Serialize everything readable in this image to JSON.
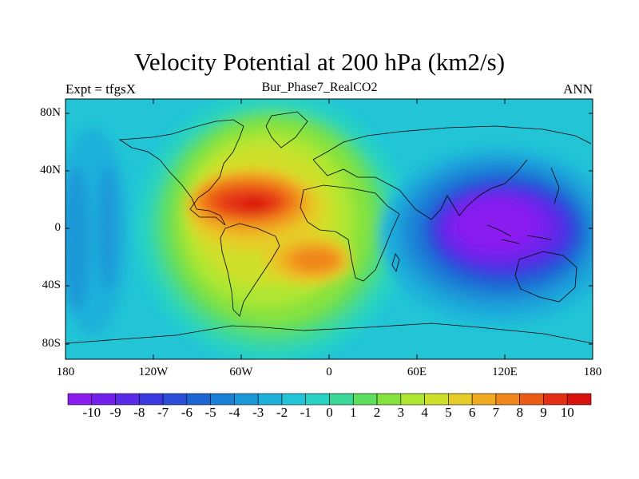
{
  "plot": {
    "title": "Velocity Potential at 200 hPa (km2/s)",
    "left_label": "Expt = tfgsX",
    "center_label": "Bur_Phase7_RealCO2",
    "right_label": "ANN"
  },
  "axes": {
    "lat_labels": [
      "80N",
      "40N",
      "0",
      "40S",
      "80S"
    ],
    "lon_labels": [
      "180",
      "120W",
      "60W",
      "0",
      "60E",
      "120E",
      "180"
    ]
  },
  "colorbar": {
    "labels": [
      "-10",
      "-9",
      "-8",
      "-7",
      "-6",
      "-5",
      "-4",
      "-3",
      "-2",
      "-1",
      "0",
      "1",
      "2",
      "3",
      "4",
      "5",
      "6",
      "7",
      "8",
      "9",
      "10"
    ],
    "colors": [
      "#8a1cf0",
      "#7320ec",
      "#5a2ae6",
      "#3a3ae0",
      "#2a4ed8",
      "#1c66d4",
      "#1a7fd6",
      "#1a98d8",
      "#1db0da",
      "#22c4d6",
      "#28d2c4",
      "#3cd89a",
      "#5ede5e",
      "#86e23e",
      "#aee632",
      "#cfe02a",
      "#e6cc28",
      "#f0aa22",
      "#f0861c",
      "#ec5c16",
      "#e43012",
      "#d8120c"
    ]
  },
  "map_data": {
    "field": "velocity potential",
    "level": "200 hPa",
    "units": "km2/s",
    "value_range": [
      -10,
      10
    ],
    "features": [
      {
        "name": "maximum",
        "region": "Caribbean / tropical Atlantic",
        "value": 10
      },
      {
        "name": "secondary maximum",
        "region": "South Atlantic",
        "value": 8
      },
      {
        "name": "minimum",
        "region": "Maritime Continent / western Pacific",
        "value": -10
      }
    ]
  }
}
